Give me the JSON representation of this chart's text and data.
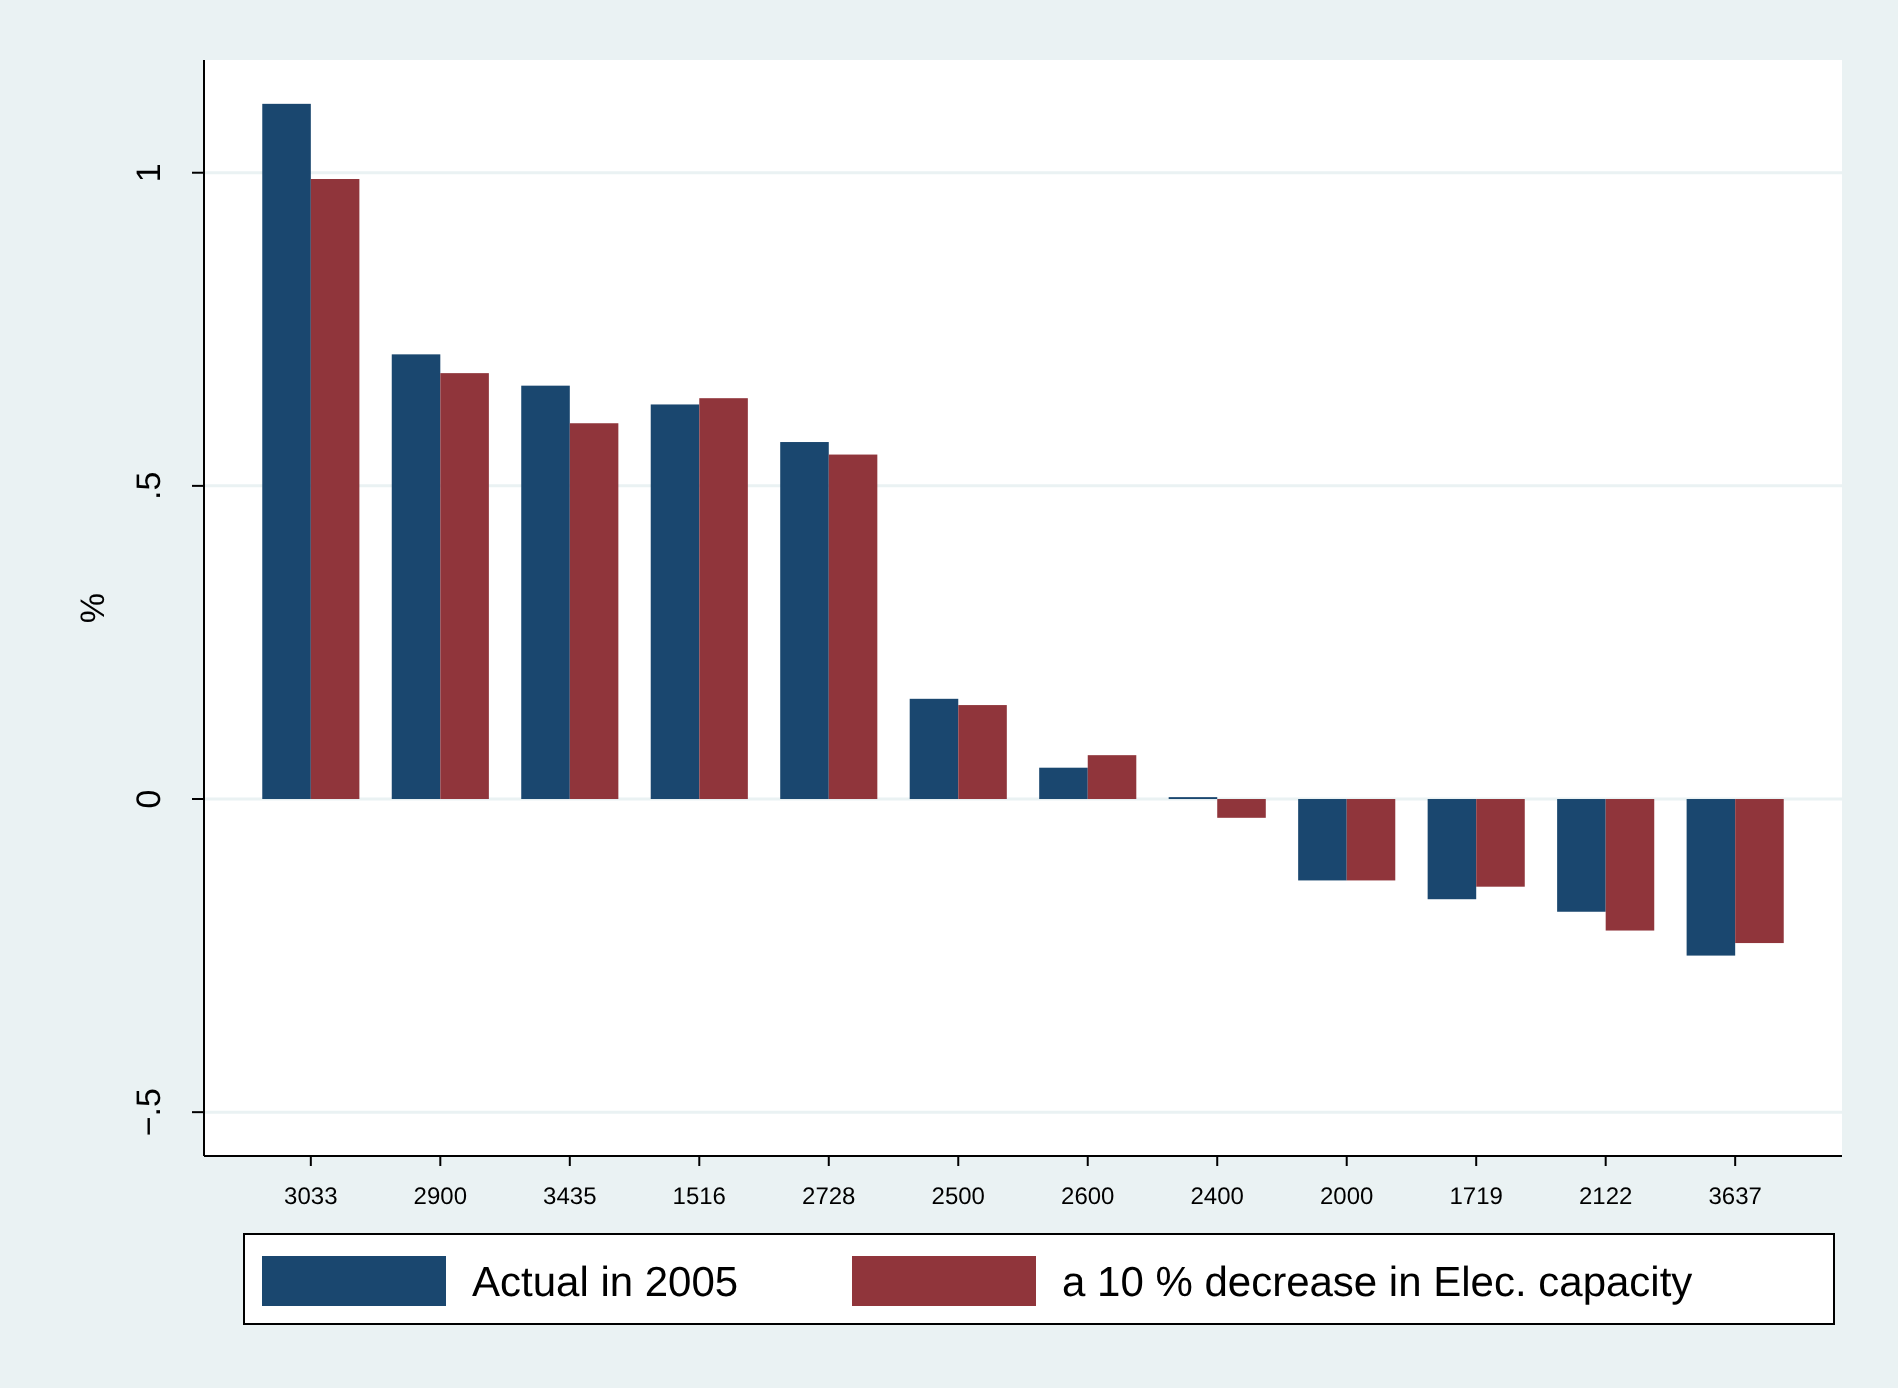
{
  "chart_data": {
    "type": "bar",
    "ylabel": "%",
    "categories": [
      "3033",
      "2900",
      "3435",
      "1516",
      "2728",
      "2500",
      "2600",
      "2400",
      "2000",
      "1719",
      "2122",
      "3637"
    ],
    "series": [
      {
        "name": "Actual in 2005",
        "color": "#1a476f",
        "values": [
          1.11,
          0.71,
          0.66,
          0.63,
          0.57,
          0.16,
          0.05,
          0.003,
          -0.13,
          -0.16,
          -0.18,
          -0.25
        ]
      },
      {
        "name": "a 10 % decrease in Elec. capacity",
        "color": "#90353b",
        "values": [
          0.99,
          0.68,
          0.6,
          0.64,
          0.55,
          0.15,
          0.07,
          -0.03,
          -0.13,
          -0.14,
          -0.21,
          -0.23
        ]
      }
    ],
    "ylim": [
      -0.57,
      1.18
    ],
    "yticks": [
      {
        "value": -0.5,
        "label": "−.5"
      },
      {
        "value": 0,
        "label": "0"
      },
      {
        "value": 0.5,
        "label": ".5"
      },
      {
        "value": 1,
        "label": "1"
      }
    ],
    "grid": "y",
    "legend": "bottom"
  }
}
